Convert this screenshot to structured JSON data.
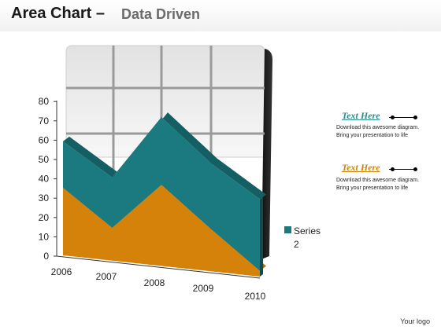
{
  "header": {
    "title_main": "Area Chart –",
    "title_sub": "Data Driven"
  },
  "chart_data": {
    "type": "area",
    "categories": [
      "2006",
      "2007",
      "2008",
      "2009",
      "2010"
    ],
    "yticks": [
      "0",
      "10",
      "20",
      "30",
      "40",
      "50",
      "60",
      "70",
      "80"
    ],
    "ylim": [
      0,
      80
    ],
    "grid": true,
    "legend_position": "right",
    "series": [
      {
        "name": "",
        "values": [
          35,
          17,
          42,
          22,
          3
        ],
        "color": "#d4820a"
      },
      {
        "name": "Series 2",
        "values": [
          24,
          26,
          35,
          34,
          37
        ],
        "color": "#1a7a7f"
      }
    ]
  },
  "legend": {
    "label_line1": "Series",
    "label_line2": "2"
  },
  "callouts": [
    {
      "title": "Text Here",
      "title_color": "#2e8a8a",
      "line1": "Download this awesome diagram.",
      "line2": "Bring your presentation to life"
    },
    {
      "title": "Text Here",
      "title_color": "#c8850a",
      "line1": "Download this awesome diagram.",
      "line2": "Bring your presentation to life"
    }
  ],
  "footer": {
    "logo_text": "Your logo"
  }
}
